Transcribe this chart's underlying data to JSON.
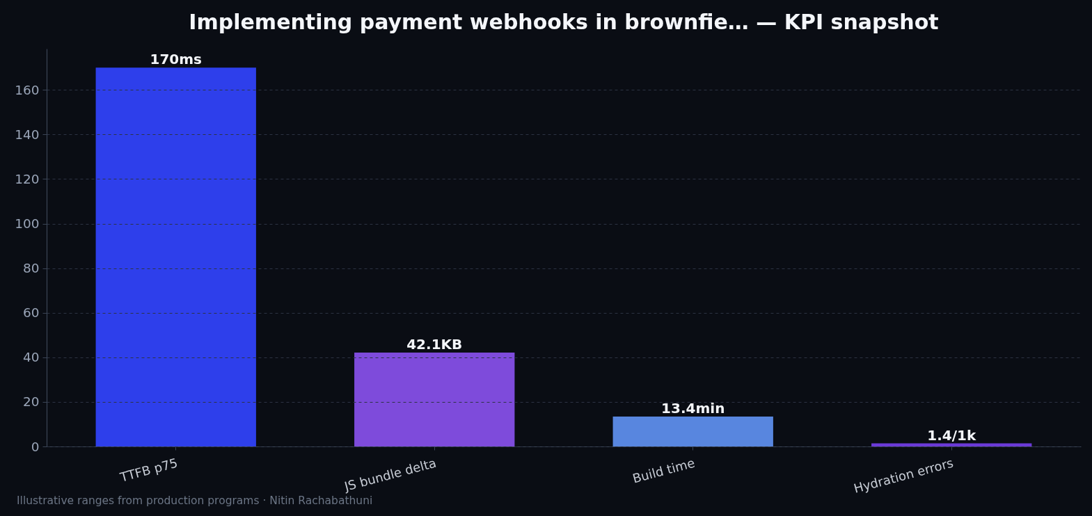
{
  "chart_data": {
    "type": "bar",
    "title": "Implementing payment webhooks in brownfie… — KPI snapshot",
    "categories": [
      "TTFB p75",
      "JS bundle delta",
      "Build time",
      "Hydration errors"
    ],
    "values": [
      170,
      42.1,
      13.4,
      1.4
    ],
    "colors": [
      "#2e3feb",
      "#7e4bdb",
      "#5886df",
      "#6b3ad8"
    ],
    "value_labels": [
      "170ms",
      "42.1KB",
      "13.4min",
      "1.4/1k"
    ],
    "ylim": [
      0,
      178.5
    ],
    "yticks": [
      0,
      20,
      40,
      60,
      80,
      100,
      120,
      140,
      160
    ],
    "grid": "y",
    "annotations": [
      "Illustrative ranges from production programs · Nitin Rachabathuni"
    ]
  }
}
